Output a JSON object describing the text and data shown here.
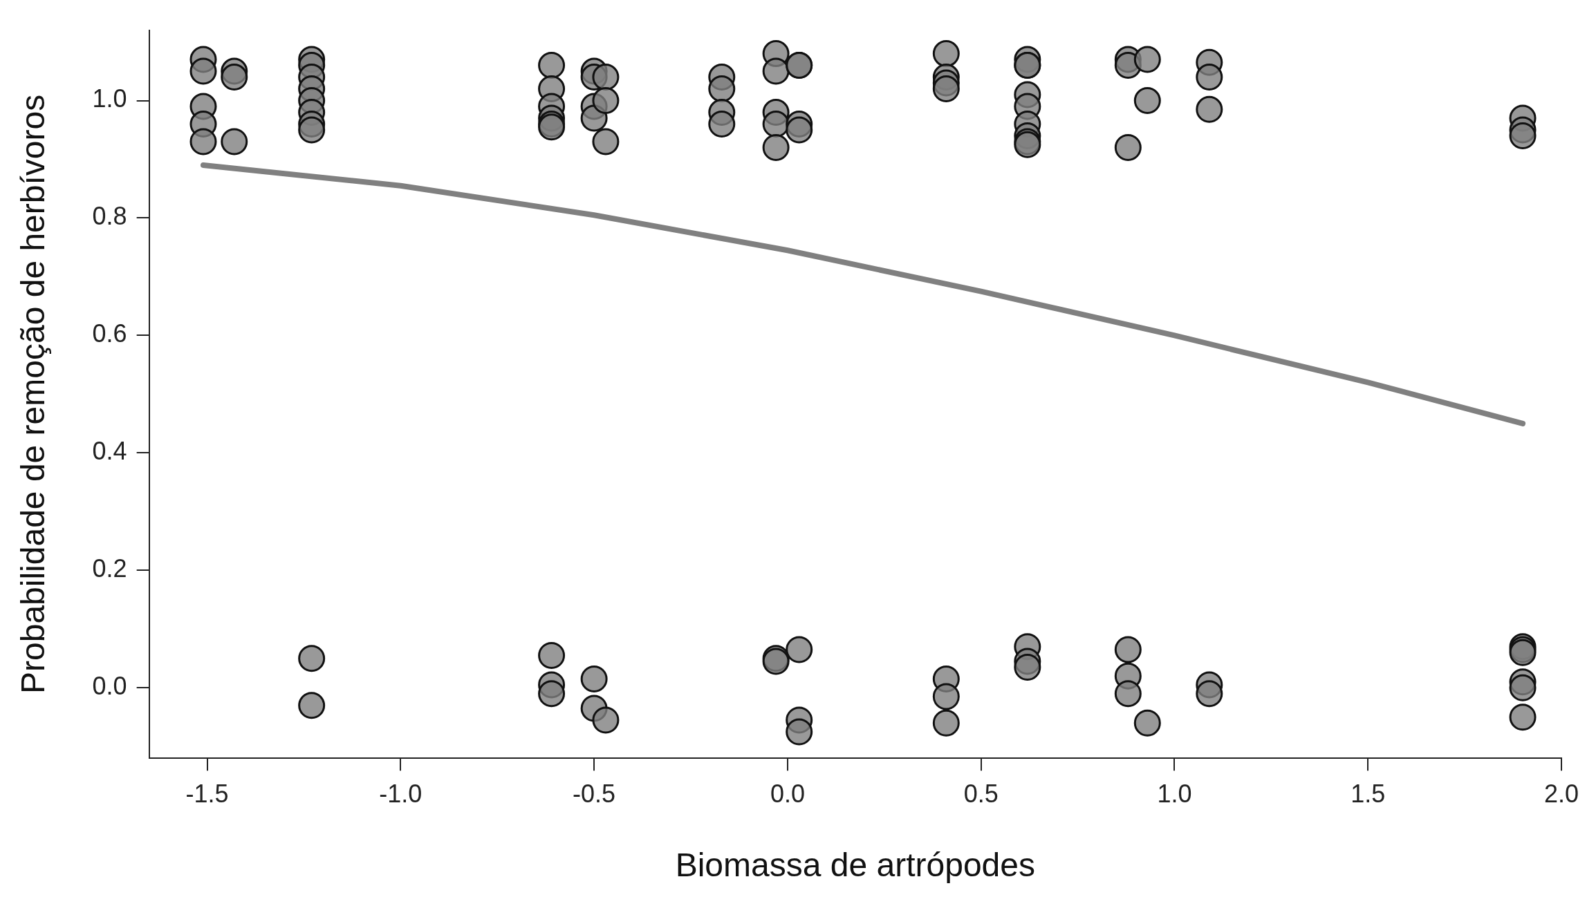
{
  "chart_data": {
    "type": "scatter",
    "xlabel": "Biomassa de artrópodes",
    "ylabel": "Probabilidade de remoção de herbívoros",
    "xlim": [
      -1.65,
      2.0
    ],
    "ylim": [
      -0.12,
      1.12
    ],
    "xticks": [
      {
        "value": -1.5,
        "label": "-1.5"
      },
      {
        "value": -1,
        "label": "-1.0"
      },
      {
        "value": -0.5,
        "label": "-0.5"
      },
      {
        "value": 0,
        "label": "0.0"
      },
      {
        "value": 0.5,
        "label": "0.5"
      },
      {
        "value": 1,
        "label": "1.0"
      },
      {
        "value": 1.5,
        "label": "1.5"
      },
      {
        "value": 2,
        "label": "2.0"
      }
    ],
    "yticks": [
      {
        "value": 0,
        "label": "0.0"
      },
      {
        "value": 0.2,
        "label": "0.2"
      },
      {
        "value": 0.4,
        "label": "0.4"
      },
      {
        "value": 0.6,
        "label": "0.6"
      },
      {
        "value": 0.8,
        "label": "0.8"
      },
      {
        "value": 1,
        "label": "1.0"
      }
    ],
    "grid": false,
    "legend": false,
    "marker": "circle",
    "series": [
      {
        "color": "#808080",
        "x": [
          -1.51,
          -1.51,
          -1.51,
          -1.51,
          -1.51,
          -1.43,
          -1.43,
          -1.43,
          -1.23,
          -1.23,
          -1.23,
          -1.23,
          -1.23,
          -1.23,
          -1.23,
          -1.23,
          -0.61,
          -0.61,
          -0.61,
          -0.61,
          -0.61,
          -0.61,
          -0.5,
          -0.5,
          -0.5,
          -0.5,
          -0.47,
          -0.47,
          -0.47,
          -0.17,
          -0.17,
          -0.17,
          -0.17,
          -0.03,
          -0.03,
          -0.03,
          -0.03,
          -0.03,
          0.03,
          0.03,
          0.03,
          0.03,
          0.41,
          0.41,
          0.41,
          0.41,
          0.62,
          0.62,
          0.62,
          0.62,
          0.62,
          0.62,
          0.62,
          0.62,
          0.62,
          0.88,
          0.88,
          0.88,
          0.93,
          0.93,
          1.09,
          1.09,
          1.09,
          1.9,
          1.9,
          1.9,
          -1.23,
          -1.23,
          -0.61,
          -0.61,
          -0.61,
          -0.5,
          -0.5,
          -0.47,
          -0.03,
          -0.03,
          0.03,
          0.03,
          0.03,
          0.41,
          0.41,
          0.41,
          0.62,
          0.62,
          0.62,
          0.88,
          0.88,
          0.88,
          0.93,
          1.09,
          1.09,
          1.9,
          1.9,
          1.9,
          1.9,
          1.9,
          1.9
        ],
        "values": [
          1.07,
          1.05,
          0.99,
          0.96,
          0.93,
          1.05,
          1.04,
          0.93,
          1.07,
          1.06,
          1.04,
          1.02,
          1.0,
          0.98,
          0.96,
          0.95,
          1.06,
          1.02,
          0.99,
          0.97,
          0.96,
          0.955,
          1.05,
          1.04,
          0.99,
          0.97,
          1.04,
          1.0,
          0.93,
          1.04,
          1.02,
          0.98,
          0.96,
          1.08,
          1.05,
          0.98,
          0.96,
          0.92,
          1.06,
          1.06,
          0.96,
          0.95,
          1.08,
          1.04,
          1.03,
          1.02,
          1.07,
          1.06,
          1.06,
          1.01,
          0.99,
          0.96,
          0.94,
          0.93,
          0.925,
          1.07,
          1.06,
          0.92,
          1.07,
          1.0,
          1.065,
          1.04,
          0.985,
          0.97,
          0.95,
          0.94,
          0.05,
          -0.03,
          0.055,
          0.005,
          -0.01,
          0.015,
          -0.035,
          -0.055,
          0.05,
          0.045,
          0.065,
          -0.055,
          -0.075,
          0.015,
          -0.015,
          -0.06,
          0.07,
          0.045,
          0.035,
          0.065,
          0.02,
          -0.01,
          -0.06,
          0.005,
          -0.01,
          0.07,
          0.065,
          0.06,
          0.01,
          0.0,
          -0.05
        ]
      },
      {
        "type": "line",
        "color": "#808080",
        "marker": "none",
        "x": [
          -1.51,
          -1.0,
          -0.5,
          0,
          0.5,
          1.0,
          1.5,
          1.9
        ],
        "values": [
          0.89,
          0.855,
          0.805,
          0.745,
          0.675,
          0.6,
          0.52,
          0.45
        ]
      }
    ]
  }
}
